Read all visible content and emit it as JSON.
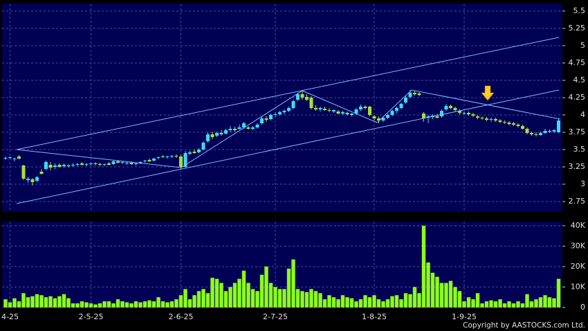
{
  "chart_data": [
    {
      "type": "candlestick",
      "up_color": "#3fd9ff",
      "down_color": "#a6e03a",
      "grid": true,
      "ylim": [
        2.6,
        5.6
      ],
      "yticks": [
        2.75,
        3,
        3.25,
        3.5,
        3.75,
        4,
        4.25,
        4.5,
        4.75,
        5,
        5.25,
        5.5
      ],
      "categories": [
        null,
        "4-25",
        null,
        null,
        null,
        null,
        null,
        null,
        null,
        null,
        null,
        null,
        null,
        null,
        null,
        null,
        null,
        null,
        null,
        "2-5-25",
        null,
        null,
        null,
        null,
        null,
        null,
        null,
        null,
        null,
        null,
        null,
        null,
        null,
        null,
        null,
        null,
        null,
        null,
        null,
        "2-6-25",
        null,
        null,
        null,
        null,
        null,
        null,
        null,
        null,
        null,
        null,
        null,
        null,
        null,
        null,
        null,
        null,
        null,
        null,
        null,
        null,
        "2-7-25",
        null,
        null,
        null,
        null,
        null,
        null,
        null,
        null,
        null,
        null,
        null,
        null,
        null,
        null,
        null,
        null,
        null,
        null,
        null,
        null,
        null,
        "1-8-25",
        null,
        null,
        null,
        null,
        null,
        null,
        null,
        null,
        null,
        null,
        null,
        null,
        null,
        null,
        null,
        null,
        null,
        null,
        null,
        "1-9-25",
        null,
        null,
        null,
        null,
        null,
        null,
        null,
        null,
        null,
        null,
        null,
        null,
        null,
        null,
        null,
        null,
        null,
        null,
        null,
        null,
        null
      ],
      "ohlc": [
        [
          3.37,
          3.4,
          3.35,
          3.38
        ],
        [
          3.38,
          3.4,
          3.36,
          3.39
        ],
        [
          3.36,
          3.38,
          3.33,
          3.37
        ],
        [
          3.4,
          3.42,
          3.36,
          3.37
        ],
        [
          3.27,
          3.28,
          3.06,
          3.08
        ],
        [
          3.06,
          3.1,
          3.02,
          3.08
        ],
        [
          3.07,
          3.09,
          2.98,
          3.03
        ],
        [
          3.05,
          3.12,
          3.03,
          3.1
        ],
        [
          3.18,
          3.22,
          3.14,
          3.15
        ],
        [
          3.22,
          3.34,
          3.2,
          3.32
        ],
        [
          3.28,
          3.32,
          3.2,
          3.24
        ],
        [
          3.25,
          3.3,
          3.22,
          3.27
        ],
        [
          3.28,
          3.3,
          3.24,
          3.25
        ],
        [
          3.26,
          3.3,
          3.24,
          3.28
        ],
        [
          3.27,
          3.29,
          3.24,
          3.26
        ],
        [
          3.27,
          3.3,
          3.25,
          3.28
        ],
        [
          3.28,
          3.31,
          3.26,
          3.29
        ],
        [
          3.3,
          3.32,
          3.27,
          3.28
        ],
        [
          3.28,
          3.31,
          3.26,
          3.29
        ],
        [
          3.29,
          3.31,
          3.27,
          3.3
        ],
        [
          3.3,
          3.32,
          3.27,
          3.29
        ],
        [
          3.29,
          3.31,
          3.26,
          3.28
        ],
        [
          3.28,
          3.3,
          3.26,
          3.29
        ],
        [
          3.3,
          3.32,
          3.27,
          3.28
        ],
        [
          3.29,
          3.34,
          3.28,
          3.33
        ],
        [
          3.33,
          3.35,
          3.3,
          3.31
        ],
        [
          3.31,
          3.33,
          3.29,
          3.32
        ],
        [
          3.3,
          3.32,
          3.28,
          3.31
        ],
        [
          3.31,
          3.33,
          3.28,
          3.29
        ],
        [
          3.29,
          3.31,
          3.27,
          3.3
        ],
        [
          3.3,
          3.33,
          3.29,
          3.32
        ],
        [
          3.33,
          3.35,
          3.31,
          3.34
        ],
        [
          3.35,
          3.37,
          3.32,
          3.33
        ],
        [
          3.34,
          3.38,
          3.33,
          3.37
        ],
        [
          3.38,
          3.4,
          3.36,
          3.39
        ],
        [
          3.4,
          3.42,
          3.38,
          3.39
        ],
        [
          3.39,
          3.41,
          3.37,
          3.4
        ],
        [
          3.4,
          3.42,
          3.38,
          3.41
        ],
        [
          3.41,
          3.43,
          3.38,
          3.4
        ],
        [
          3.4,
          3.42,
          3.22,
          3.25
        ],
        [
          3.25,
          3.48,
          3.24,
          3.45
        ],
        [
          3.44,
          3.48,
          3.42,
          3.46
        ],
        [
          3.47,
          3.5,
          3.44,
          3.45
        ],
        [
          3.46,
          3.52,
          3.45,
          3.5
        ],
        [
          3.5,
          3.62,
          3.49,
          3.6
        ],
        [
          3.62,
          3.75,
          3.6,
          3.72
        ],
        [
          3.72,
          3.76,
          3.65,
          3.68
        ],
        [
          3.7,
          3.76,
          3.68,
          3.74
        ],
        [
          3.74,
          3.78,
          3.7,
          3.72
        ],
        [
          3.73,
          3.8,
          3.72,
          3.78
        ],
        [
          3.78,
          3.84,
          3.75,
          3.8
        ],
        [
          3.8,
          3.83,
          3.76,
          3.78
        ],
        [
          3.8,
          3.86,
          3.79,
          3.82
        ],
        [
          3.82,
          3.9,
          3.8,
          3.88
        ],
        [
          3.82,
          3.84,
          3.79,
          3.8
        ],
        [
          3.8,
          3.84,
          3.78,
          3.82
        ],
        [
          3.82,
          3.88,
          3.8,
          3.86
        ],
        [
          3.88,
          3.98,
          3.86,
          3.95
        ],
        [
          3.95,
          3.98,
          3.9,
          3.93
        ],
        [
          3.94,
          4.02,
          3.92,
          4.0
        ],
        [
          4.0,
          4.04,
          3.97,
          4.01
        ],
        [
          4.01,
          4.06,
          3.99,
          4.04
        ],
        [
          4.04,
          4.08,
          4.01,
          4.06
        ],
        [
          4.06,
          4.12,
          4.04,
          4.1
        ],
        [
          4.1,
          4.22,
          4.08,
          4.2
        ],
        [
          4.22,
          4.32,
          4.2,
          4.3
        ],
        [
          4.3,
          4.36,
          4.22,
          4.25
        ],
        [
          4.26,
          4.3,
          4.2,
          4.22
        ],
        [
          4.25,
          4.27,
          4.08,
          4.1
        ],
        [
          4.1,
          4.14,
          4.06,
          4.08
        ],
        [
          4.08,
          4.12,
          4.05,
          4.1
        ],
        [
          4.09,
          4.12,
          4.06,
          4.07
        ],
        [
          4.07,
          4.1,
          4.04,
          4.06
        ],
        [
          4.05,
          4.08,
          4.03,
          4.07
        ],
        [
          4.05,
          4.07,
          4.01,
          4.02
        ],
        [
          4.02,
          4.06,
          4.0,
          4.04
        ],
        [
          4.03,
          4.05,
          3.99,
          4.01
        ],
        [
          4.0,
          4.03,
          3.98,
          4.02
        ],
        [
          4.02,
          4.1,
          4.0,
          4.08
        ],
        [
          4.08,
          4.15,
          4.06,
          4.12
        ],
        [
          4.12,
          4.14,
          4.08,
          4.1
        ],
        [
          4.12,
          4.13,
          3.98,
          4.0
        ],
        [
          3.98,
          4.0,
          3.92,
          3.95
        ],
        [
          3.95,
          3.98,
          3.88,
          3.92
        ],
        [
          3.92,
          3.98,
          3.9,
          3.96
        ],
        [
          3.96,
          4.02,
          3.94,
          4.0
        ],
        [
          4.0,
          4.08,
          3.98,
          4.06
        ],
        [
          4.06,
          4.12,
          4.03,
          4.1
        ],
        [
          4.1,
          4.18,
          4.08,
          4.16
        ],
        [
          4.18,
          4.28,
          4.16,
          4.25
        ],
        [
          4.26,
          4.36,
          4.24,
          4.32
        ],
        [
          4.32,
          4.35,
          4.28,
          4.3
        ],
        [
          4.31,
          4.33,
          4.27,
          4.29
        ],
        [
          4.02,
          4.04,
          3.9,
          3.95
        ],
        [
          3.96,
          4.0,
          3.88,
          3.98
        ],
        [
          3.97,
          4.01,
          3.94,
          3.99
        ],
        [
          3.98,
          4.02,
          3.95,
          3.96
        ],
        [
          3.98,
          4.08,
          3.96,
          4.06
        ],
        [
          4.08,
          4.16,
          4.06,
          4.13
        ],
        [
          4.13,
          4.15,
          4.08,
          4.1
        ],
        [
          4.1,
          4.12,
          4.05,
          4.07
        ],
        [
          4.06,
          4.08,
          4.01,
          4.03
        ],
        [
          4.02,
          4.05,
          4.0,
          4.03
        ],
        [
          4.03,
          4.05,
          3.99,
          4.01
        ],
        [
          4.01,
          4.03,
          3.97,
          3.99
        ],
        [
          3.98,
          4.0,
          3.94,
          3.96
        ],
        [
          3.96,
          3.98,
          3.93,
          3.95
        ],
        [
          3.95,
          3.97,
          3.91,
          3.93
        ],
        [
          3.93,
          3.96,
          3.9,
          3.94
        ],
        [
          3.94,
          3.96,
          3.9,
          3.92
        ],
        [
          3.92,
          3.94,
          3.88,
          3.9
        ],
        [
          3.9,
          3.92,
          3.87,
          3.89
        ],
        [
          3.89,
          3.91,
          3.85,
          3.87
        ],
        [
          3.88,
          3.9,
          3.84,
          3.86
        ],
        [
          3.86,
          3.88,
          3.82,
          3.84
        ],
        [
          3.84,
          3.86,
          3.79,
          3.8
        ],
        [
          3.8,
          3.82,
          3.72,
          3.74
        ],
        [
          3.74,
          3.76,
          3.7,
          3.72
        ],
        [
          3.72,
          3.75,
          3.69,
          3.71
        ],
        [
          3.71,
          3.76,
          3.7,
          3.74
        ],
        [
          3.74,
          3.8,
          3.73,
          3.77
        ],
        [
          3.77,
          3.79,
          3.74,
          3.76
        ],
        [
          3.76,
          3.8,
          3.74,
          3.78
        ],
        [
          3.75,
          3.95,
          3.74,
          3.92
        ]
      ]
    },
    {
      "type": "bar",
      "color": "#8cff1a",
      "grid": true,
      "ylim": [
        0,
        42000
      ],
      "yticks": [
        0,
        {
          "value": 10000,
          "label": "10K"
        },
        {
          "value": 20000,
          "label": "20K"
        },
        {
          "value": 30000,
          "label": "30K"
        },
        {
          "value": 40000,
          "label": "40K"
        }
      ],
      "values": [
        4000,
        2500,
        4500,
        3000,
        7000,
        5000,
        5500,
        6500,
        6000,
        5000,
        5500,
        4500,
        5500,
        6500,
        4500,
        2000,
        2000,
        3000,
        2500,
        2000,
        1500,
        2000,
        3000,
        3000,
        2000,
        4000,
        3000,
        2500,
        2000,
        3000,
        2500,
        3000,
        3500,
        3000,
        5000,
        3000,
        2500,
        3000,
        4000,
        6000,
        9000,
        4000,
        6000,
        8000,
        9000,
        7000,
        14500,
        14000,
        12000,
        8000,
        10000,
        12000,
        14000,
        18000,
        12000,
        9000,
        8000,
        16000,
        20000,
        12000,
        10000,
        9000,
        9000,
        19000,
        23500,
        9000,
        8000,
        7500,
        9000,
        8000,
        7000,
        4000,
        6000,
        5000,
        4000,
        6000,
        5000,
        4500,
        3000,
        4000,
        6000,
        5000,
        6000,
        4000,
        3000,
        4000,
        5500,
        6000,
        4000,
        7000,
        6500,
        10000,
        7000,
        40000,
        22000,
        17000,
        15000,
        12000,
        12000,
        13000,
        10000,
        8000,
        3000,
        5000,
        4000,
        7000,
        2000,
        3000,
        3500,
        3000,
        4000,
        2000,
        3000,
        2000,
        3000,
        2000,
        6500,
        3000,
        4000,
        5000,
        6000,
        5000,
        4500,
        14000
      ]
    }
  ],
  "copyright": "Copyright by AASTOCKS.com Ltd."
}
